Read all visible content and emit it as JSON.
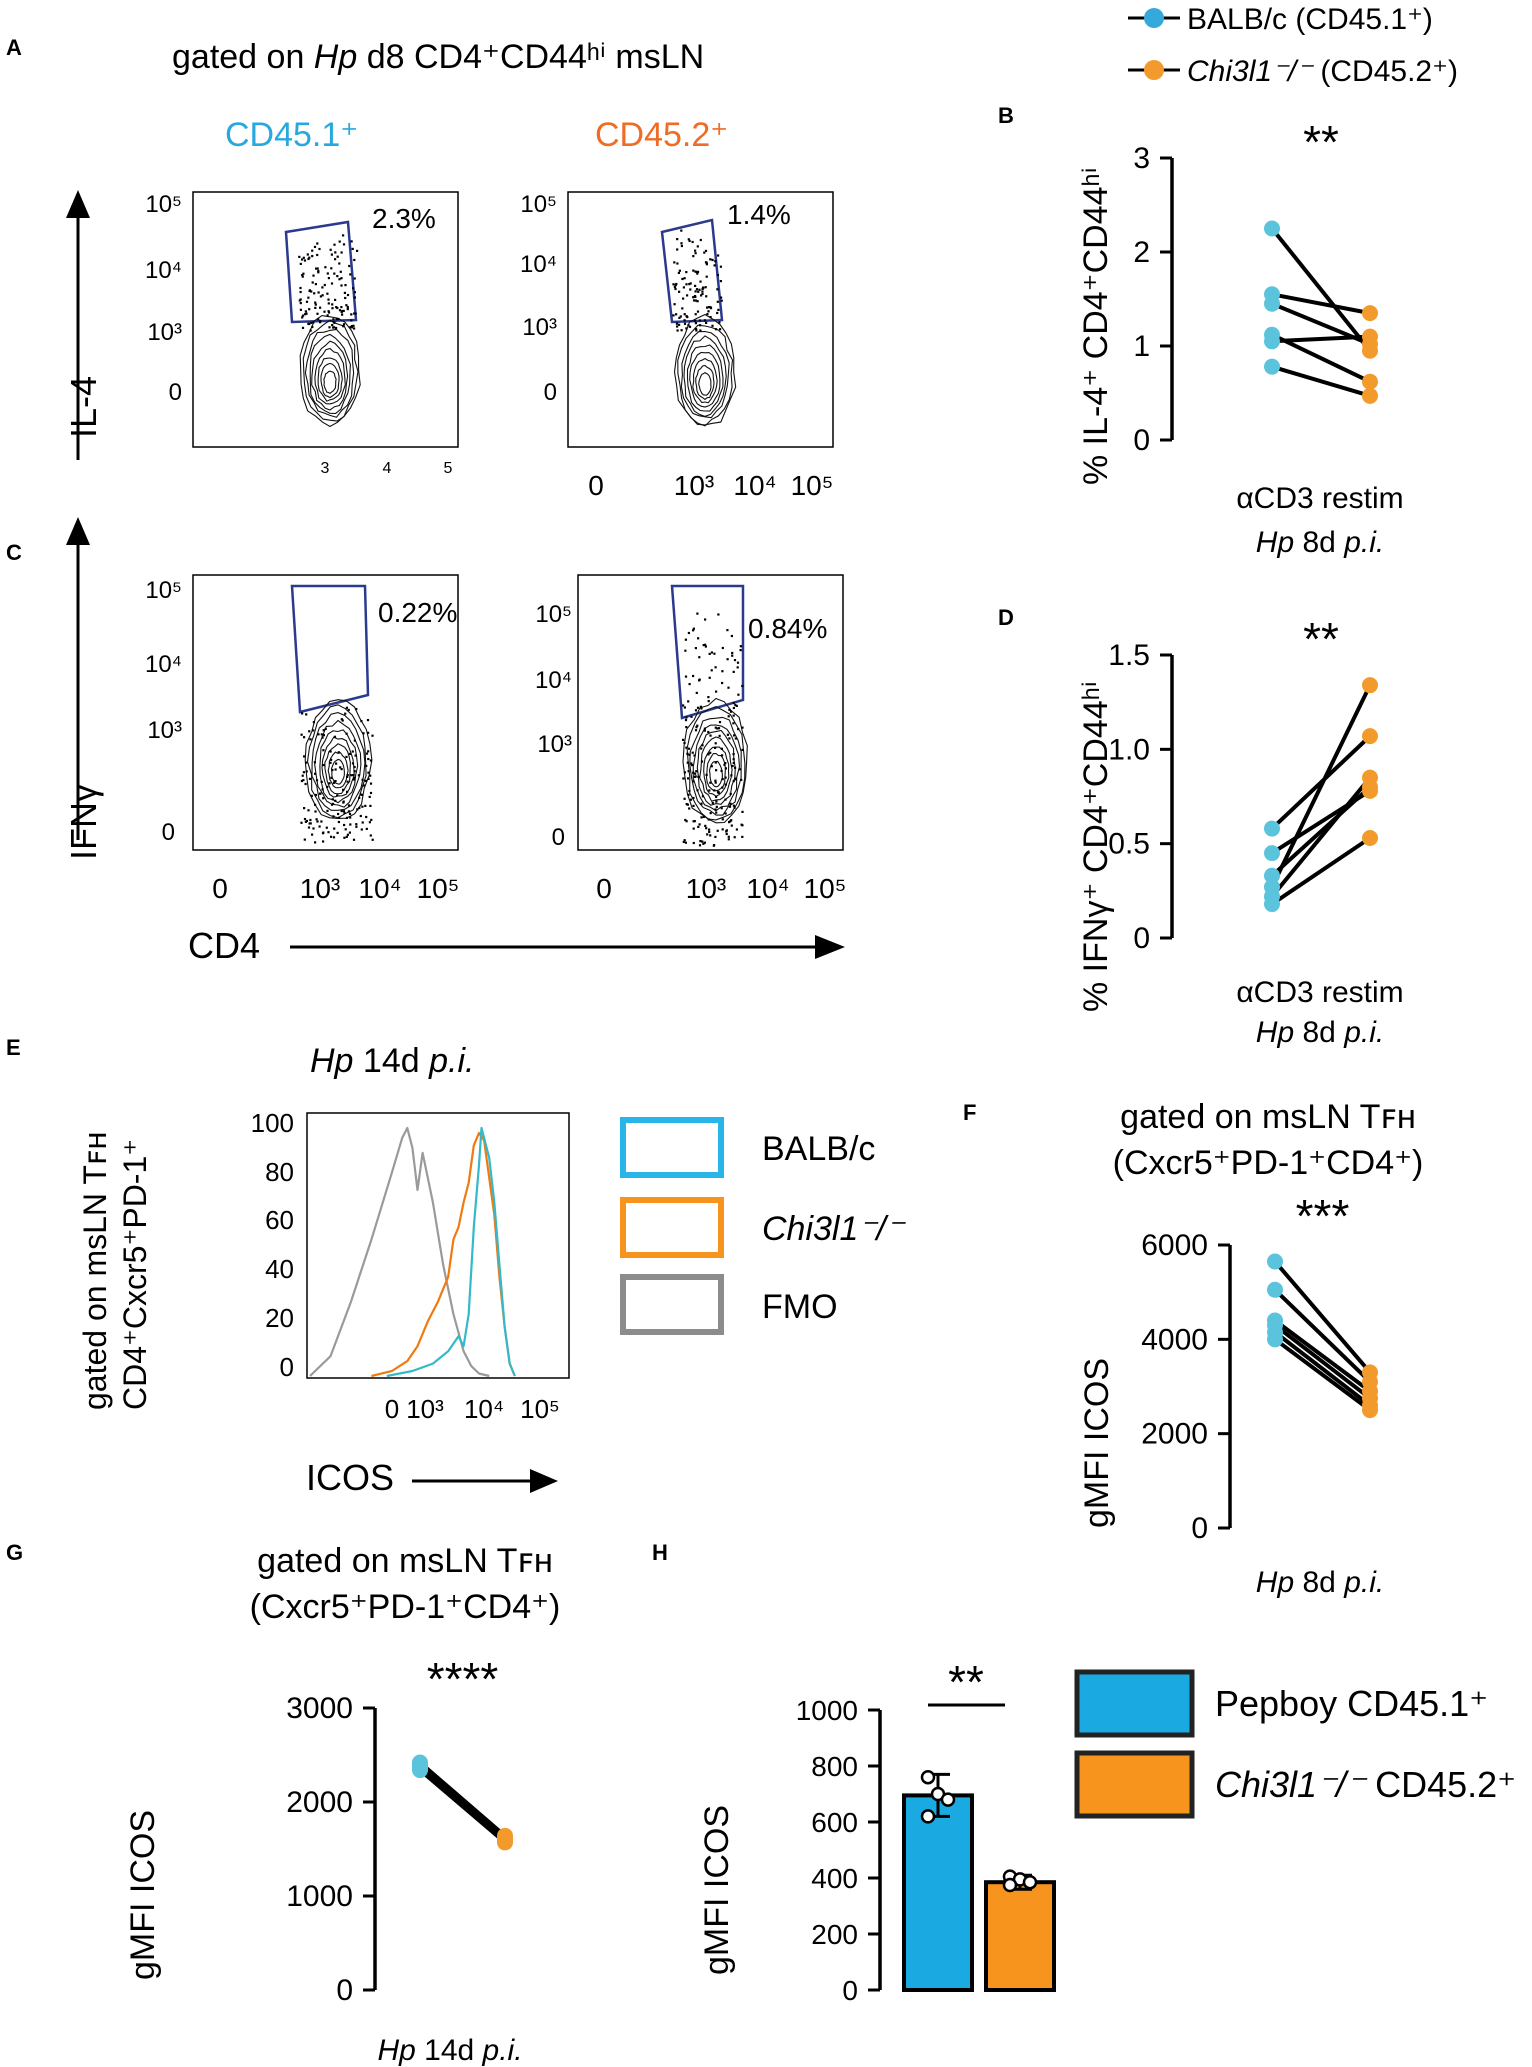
{
  "figure": {
    "panels": [
      "A",
      "B",
      "C",
      "D",
      "E",
      "F",
      "G",
      "H"
    ]
  },
  "legend_top": {
    "items": [
      {
        "label": "BALB/c (CD45.1⁺)",
        "color": "#35a9d9",
        "marker": "dot"
      },
      {
        "label_italic": "Chi3l1⁻/⁻",
        "label_rest": " (CD45.2⁺)",
        "color": "#f39a2c",
        "marker": "dot"
      }
    ]
  },
  "panel_a": {
    "title_parts": [
      "gated on ",
      "Hp",
      " d8 CD4⁺CD44ʰⁱ msLN"
    ],
    "col1_label": "CD45.1⁺",
    "col1_color": "#29a8e0",
    "col2_label": "CD45.2⁺",
    "col2_color": "#ef6c26",
    "ylabel": "IL-4",
    "plot1": {
      "gate_pct": "2.3%",
      "y_ticks": [
        "10⁵",
        "10⁴",
        "10³",
        "0"
      ],
      "x_ticks": [
        "3",
        "4",
        "5"
      ]
    },
    "plot2": {
      "gate_pct": "1.4%",
      "y_ticks": [
        "10⁵",
        "10⁴",
        "10³",
        "0"
      ],
      "x_ticks": [
        "0",
        "10³",
        "10⁴",
        "10⁵"
      ]
    },
    "gate_color": "#2b3a8f"
  },
  "panel_c": {
    "ylabel": "IFNγ",
    "xlabel": "CD4",
    "plot1": {
      "gate_pct": "0.22%",
      "y_ticks": [
        "10⁵",
        "10⁴",
        "10³",
        "0"
      ],
      "x_ticks": [
        "0",
        "10³",
        "10⁴",
        "10⁵"
      ]
    },
    "plot2": {
      "gate_pct": "0.84%",
      "y_ticks": [
        "10⁵",
        "10⁴",
        "10³",
        "0"
      ],
      "x_ticks": [
        "0",
        "10³",
        "10⁴",
        "10⁵"
      ]
    }
  },
  "panel_e": {
    "title_parts": [
      "Hp",
      " 14d ",
      "p.i."
    ],
    "ylabel_line1": "gated on msLN Tꜰʜ",
    "ylabel_line2": "CD4⁺Cxcr5⁺PD-1⁺",
    "xlabel": "ICOS",
    "legend": [
      {
        "label": "BALB/c",
        "color": "#29b5e8",
        "italic": false
      },
      {
        "label": "Chi3l1⁻/⁻",
        "color": "#f7941d",
        "italic": true
      },
      {
        "label": "FMO",
        "color": "#8c8c8c",
        "italic": false
      }
    ],
    "y_ticks": [
      "100",
      "80",
      "60",
      "40",
      "20",
      "0"
    ],
    "x_ticks": [
      "0",
      "10³",
      "10⁴",
      "10⁵"
    ]
  },
  "chart_data": [
    {
      "panel": "B",
      "type": "scatter",
      "paired": true,
      "ylabel": "% IL-4⁺ CD4⁺CD44ʰⁱ",
      "xlabel_line1": "αCD3 restim",
      "xlabel_line2_parts": [
        "Hp",
        " 8d ",
        "p.i."
      ],
      "significance": "**",
      "ylim": [
        0,
        3
      ],
      "y_ticks": [
        0,
        1,
        2,
        3
      ],
      "series": [
        {
          "name": "BALB/c (CD45.1⁺)",
          "color": "#5bc4dc",
          "values": [
            2.25,
            1.55,
            1.45,
            1.12,
            1.05,
            0.78
          ]
        },
        {
          "name": "Chi3l1⁻/⁻ (CD45.2⁺)",
          "color": "#f39a2c",
          "values": [
            0.95,
            1.35,
            1.02,
            0.62,
            1.1,
            0.47
          ]
        }
      ]
    },
    {
      "panel": "D",
      "type": "scatter",
      "paired": true,
      "ylabel": "% IFNγ⁺ CD4⁺CD44ʰⁱ",
      "xlabel_line1": "αCD3 restim",
      "xlabel_line2_parts": [
        "Hp",
        " 8d ",
        "p.i."
      ],
      "significance": "**",
      "ylim": [
        0,
        1.5
      ],
      "y_ticks": [
        0,
        0.5,
        1.0,
        1.5
      ],
      "y_tick_labels": [
        "0",
        "0.5",
        "1.0",
        "1.5"
      ],
      "series": [
        {
          "name": "BALB/c (CD45.1⁺)",
          "color": "#5bc4dc",
          "values": [
            0.58,
            0.45,
            0.33,
            0.27,
            0.22,
            0.18
          ]
        },
        {
          "name": "Chi3l1⁻/⁻ (CD45.2⁺)",
          "color": "#f39a2c",
          "values": [
            1.07,
            0.78,
            0.8,
            1.34,
            0.85,
            0.53
          ]
        }
      ]
    },
    {
      "panel": "E",
      "type": "line",
      "title": "Hp 14d p.i.",
      "xlabel": "ICOS",
      "ylim": [
        0,
        100
      ],
      "x_scale": "biexponential (0 to 10⁵)",
      "series": [
        {
          "name": "FMO",
          "color": "#9a9a9a",
          "x": [
            0.0,
            0.4,
            0.8,
            1.2,
            1.6,
            1.8,
            1.9,
            2.0,
            2.1,
            2.2,
            2.4,
            2.6,
            2.8,
            3.0,
            3.15,
            3.3,
            3.5
          ],
          "y": [
            0,
            8,
            30,
            55,
            82,
            96,
            100,
            92,
            75,
            90,
            70,
            45,
            25,
            10,
            4,
            1,
            0
          ]
        },
        {
          "name": "Chi3l1⁻/⁻",
          "color": "#f07a12",
          "x": [
            1.2,
            1.6,
            1.9,
            2.1,
            2.3,
            2.5,
            2.7,
            2.8,
            2.9,
            3.0,
            3.1,
            3.2,
            3.3,
            3.4,
            3.5,
            3.6,
            3.7,
            3.8,
            3.9,
            4.0
          ],
          "y": [
            0,
            2,
            6,
            12,
            22,
            30,
            40,
            55,
            60,
            70,
            78,
            93,
            98,
            95,
            80,
            65,
            40,
            20,
            5,
            0
          ]
        },
        {
          "name": "BALB/c",
          "color": "#33b9c9",
          "x": [
            1.5,
            2.0,
            2.4,
            2.7,
            2.9,
            3.0,
            3.1,
            3.2,
            3.3,
            3.35,
            3.4,
            3.5,
            3.6,
            3.7,
            3.8,
            3.9,
            4.0
          ],
          "y": [
            0,
            2,
            5,
            10,
            16,
            12,
            25,
            60,
            85,
            100,
            96,
            88,
            70,
            45,
            20,
            5,
            0
          ]
        }
      ]
    },
    {
      "panel": "F",
      "type": "scatter",
      "paired": true,
      "title_line1": "gated on msLN Tꜰʜ",
      "title_line2": "(Cxcr5⁺PD-1⁺CD4⁺)",
      "ylabel": "gMFI ICOS",
      "xlabel_parts": [
        "Hp",
        " 8d ",
        "p.i."
      ],
      "significance": "***",
      "ylim": [
        0,
        6000
      ],
      "y_ticks": [
        0,
        2000,
        4000,
        6000
      ],
      "series": [
        {
          "name": "BALB/c (CD45.1⁺)",
          "color": "#5bc4dc",
          "values": [
            5650,
            5050,
            4400,
            4300,
            4150,
            4000
          ]
        },
        {
          "name": "Chi3l1⁻/⁻ (CD45.2⁺)",
          "color": "#f39a2c",
          "values": [
            3300,
            3100,
            2900,
            2750,
            2600,
            2500
          ]
        }
      ]
    },
    {
      "panel": "G",
      "type": "scatter",
      "paired": true,
      "title_line1": "gated on msLN Tꜰʜ",
      "title_line2": "(Cxcr5⁺PD-1⁺CD4⁺)",
      "ylabel": "gMFI ICOS",
      "xlabel_parts": [
        "Hp",
        " 14d ",
        "p.i."
      ],
      "significance": "****",
      "ylim": [
        0,
        3000
      ],
      "y_ticks": [
        0,
        1000,
        2000,
        3000
      ],
      "series": [
        {
          "name": "BALB/c (CD45.1⁺)",
          "color": "#5bc4dc",
          "values": [
            2420,
            2400,
            2380,
            2360,
            2350,
            2340
          ]
        },
        {
          "name": "Chi3l1⁻/⁻ (CD45.2⁺)",
          "color": "#f39a2c",
          "values": [
            1640,
            1620,
            1600,
            1590,
            1580,
            1570
          ]
        }
      ]
    },
    {
      "panel": "H",
      "type": "bar",
      "ylabel": "gMFI ICOS",
      "significance": "**",
      "ylim": [
        0,
        1000
      ],
      "y_ticks": [
        0,
        200,
        400,
        600,
        800,
        1000
      ],
      "categories": [
        "Pepboy CD45.1⁺",
        "Chi3l1⁻/⁻ CD45.2⁺"
      ],
      "values": [
        695,
        385
      ],
      "errors": [
        75,
        25
      ],
      "points": [
        [
          760,
          700,
          680,
          620
        ],
        [
          405,
          395,
          385,
          375
        ]
      ],
      "colors": [
        "#1aa9e1",
        "#f7941d"
      ],
      "legend": [
        {
          "label": "Pepboy CD45.1⁺",
          "color": "#1aa9e1",
          "italic_part": "",
          "rest": "Pepboy CD45.1⁺"
        },
        {
          "label": "Chi3l1⁻/⁻ CD45.2⁺",
          "color": "#f7941d",
          "italic_part": "Chi3l1⁻/⁻",
          "rest": " CD45.2⁺"
        }
      ]
    }
  ]
}
